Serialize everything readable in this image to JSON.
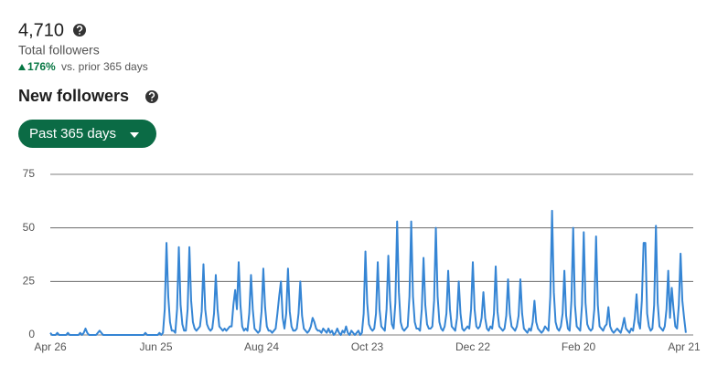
{
  "header": {
    "total": "4,710",
    "total_label": "Total followers",
    "change": "176%",
    "change_label": "vs. prior 365 days"
  },
  "section_title": "New followers",
  "range_button": "Past 365 days",
  "chart_data": {
    "type": "line",
    "color": "#3585d4",
    "grid": true,
    "ylim": [
      0,
      75
    ],
    "yticks": [
      0,
      25,
      50,
      75
    ],
    "categories": [
      "Apr 26",
      null,
      null,
      null,
      null,
      null,
      null,
      null,
      null,
      null,
      null,
      null,
      null,
      null,
      null,
      null,
      null,
      null,
      null,
      null,
      null,
      null,
      null,
      null,
      null,
      null,
      null,
      null,
      null,
      null,
      null,
      null,
      null,
      null,
      null,
      null,
      null,
      null,
      null,
      null,
      null,
      null,
      null,
      null,
      null,
      null,
      null,
      null,
      null,
      null,
      null,
      null,
      null,
      null,
      null,
      null,
      null,
      null,
      null,
      null,
      "Jun 25",
      null,
      null,
      null,
      null,
      null,
      null,
      null,
      null,
      null,
      null,
      null,
      null,
      null,
      null,
      null,
      null,
      null,
      null,
      null,
      null,
      null,
      null,
      null,
      null,
      null,
      null,
      null,
      null,
      null,
      null,
      null,
      null,
      null,
      null,
      null,
      null,
      null,
      null,
      null,
      null,
      null,
      null,
      null,
      null,
      null,
      null,
      null,
      null,
      null,
      null,
      null,
      null,
      null,
      null,
      null,
      null,
      null,
      null,
      null,
      "Aug 24",
      null,
      null,
      null,
      null,
      null,
      null,
      null,
      null,
      null,
      null,
      null,
      null,
      null,
      null,
      null,
      null,
      null,
      null,
      null,
      null,
      null,
      null,
      null,
      null,
      null,
      null,
      null,
      null,
      null,
      null,
      null,
      null,
      null,
      null,
      null,
      null,
      null,
      null,
      null,
      null,
      null,
      null,
      null,
      null,
      null,
      null,
      null,
      null,
      null,
      null,
      null,
      null,
      null,
      null,
      null,
      null,
      null,
      null,
      null,
      "Oct 23",
      null,
      null,
      null,
      null,
      null,
      null,
      null,
      null,
      null,
      null,
      null,
      null,
      null,
      null,
      null,
      null,
      null,
      null,
      null,
      null,
      null,
      null,
      null,
      null,
      null,
      null,
      null,
      null,
      null,
      null,
      null,
      null,
      null,
      null,
      null,
      null,
      null,
      null,
      null,
      null,
      null,
      null,
      null,
      null,
      null,
      null,
      null,
      null,
      null,
      null,
      null,
      null,
      null,
      null,
      null,
      null,
      null,
      null,
      null,
      "Dec 22",
      null,
      null,
      null,
      null,
      null,
      null,
      null,
      null,
      null,
      null,
      null,
      null,
      null,
      null,
      null,
      null,
      null,
      null,
      null,
      null,
      null,
      null,
      null,
      null,
      null,
      null,
      null,
      null,
      null,
      null,
      null,
      null,
      null,
      null,
      null,
      null,
      null,
      null,
      null,
      null,
      null,
      null,
      null,
      null,
      null,
      null,
      null,
      null,
      null,
      null,
      null,
      null,
      null,
      null,
      null,
      null,
      null,
      null,
      null,
      "Feb 20",
      null,
      null,
      null,
      null,
      null,
      null,
      null,
      null,
      null,
      null,
      null,
      null,
      null,
      null,
      null,
      null,
      null,
      null,
      null,
      null,
      null,
      null,
      null,
      null,
      null,
      null,
      null,
      null,
      null,
      null,
      null,
      null,
      null,
      null,
      null,
      null,
      null,
      null,
      null,
      null,
      null,
      null,
      null,
      null,
      null,
      null,
      null,
      null,
      null,
      null,
      null,
      null,
      null,
      null,
      null,
      null,
      null,
      null,
      null,
      "Apr 21",
      null
    ],
    "values": [
      1,
      0,
      0,
      0,
      1,
      0,
      0,
      0,
      0,
      0,
      1,
      0,
      0,
      0,
      0,
      0,
      0,
      1,
      0,
      1,
      3,
      1,
      0,
      0,
      0,
      0,
      0,
      1,
      2,
      1,
      0,
      0,
      0,
      0,
      0,
      0,
      0,
      0,
      0,
      0,
      0,
      0,
      0,
      0,
      0,
      0,
      0,
      0,
      0,
      0,
      0,
      0,
      0,
      0,
      1,
      0,
      0,
      0,
      0,
      0,
      0,
      0,
      1,
      0,
      1,
      12,
      43,
      18,
      6,
      2,
      2,
      1,
      12,
      41,
      14,
      5,
      2,
      2,
      12,
      41,
      16,
      6,
      3,
      2,
      3,
      4,
      11,
      33,
      12,
      5,
      3,
      2,
      3,
      10,
      28,
      12,
      4,
      3,
      2,
      3,
      2,
      3,
      4,
      4,
      14,
      21,
      12,
      34,
      14,
      4,
      2,
      3,
      2,
      10,
      28,
      12,
      3,
      2,
      1,
      2,
      11,
      31,
      13,
      4,
      2,
      2,
      1,
      2,
      3,
      10,
      18,
      25,
      8,
      3,
      10,
      31,
      11,
      4,
      2,
      2,
      3,
      10,
      25,
      9,
      3,
      2,
      1,
      2,
      4,
      8,
      6,
      3,
      2,
      2,
      1,
      3,
      2,
      1,
      3,
      1,
      2,
      0,
      1,
      3,
      1,
      0,
      2,
      1,
      4,
      1,
      0,
      2,
      1,
      0,
      1,
      2,
      0,
      1,
      10,
      39,
      15,
      5,
      3,
      2,
      3,
      10,
      34,
      12,
      4,
      3,
      2,
      12,
      37,
      16,
      5,
      3,
      15,
      53,
      20,
      6,
      3,
      2,
      3,
      4,
      18,
      53,
      18,
      6,
      3,
      3,
      2,
      12,
      36,
      14,
      5,
      3,
      3,
      4,
      16,
      50,
      18,
      6,
      3,
      2,
      4,
      10,
      30,
      12,
      4,
      3,
      2,
      8,
      25,
      10,
      3,
      2,
      3,
      4,
      3,
      12,
      34,
      12,
      4,
      3,
      4,
      8,
      20,
      8,
      3,
      2,
      4,
      3,
      10,
      32,
      11,
      4,
      3,
      2,
      3,
      9,
      26,
      10,
      4,
      3,
      2,
      4,
      9,
      26,
      10,
      3,
      2,
      1,
      3,
      2,
      6,
      16,
      6,
      3,
      2,
      1,
      2,
      4,
      3,
      2,
      18,
      58,
      20,
      6,
      3,
      2,
      4,
      10,
      30,
      9,
      3,
      2,
      16,
      50,
      14,
      4,
      3,
      2,
      14,
      48,
      15,
      5,
      3,
      2,
      3,
      12,
      46,
      14,
      4,
      3,
      2,
      4,
      5,
      13,
      4,
      2,
      1,
      2,
      3,
      2,
      1,
      4,
      8,
      3,
      2,
      1,
      3,
      2,
      8,
      19,
      6,
      3,
      16,
      43,
      43,
      10,
      4,
      2,
      3,
      14,
      51,
      15,
      4,
      3,
      2,
      4,
      12,
      30,
      8,
      22,
      12,
      4,
      3,
      14,
      38,
      16,
      8,
      1
    ]
  }
}
